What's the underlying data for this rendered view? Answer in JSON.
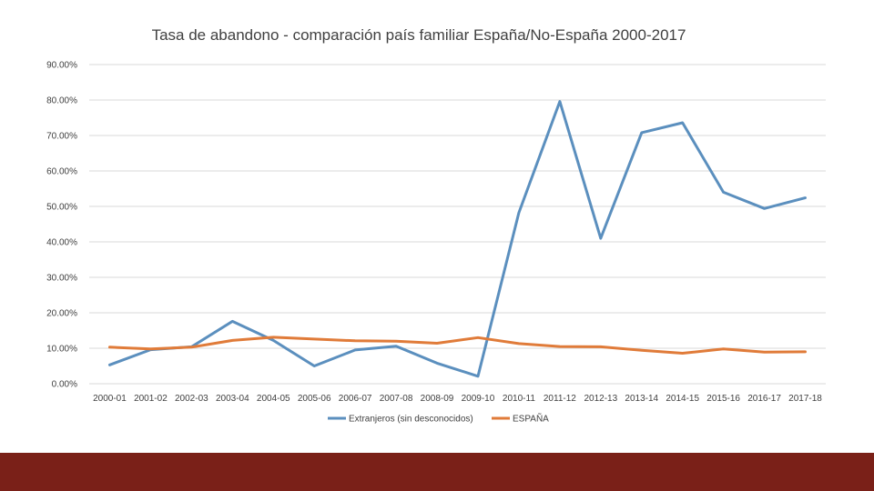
{
  "chart_data": {
    "type": "line",
    "title": "Tasa de abandono - comparación país familiar España/No-España 2000-2017",
    "xlabel": "",
    "ylabel": "",
    "ylim": [
      0,
      90
    ],
    "y_ticks": [
      "0.00%",
      "10.00%",
      "20.00%",
      "30.00%",
      "40.00%",
      "50.00%",
      "60.00%",
      "70.00%",
      "80.00%",
      "90.00%"
    ],
    "grid": true,
    "legend_position": "bottom",
    "categories": [
      "2000-01",
      "2001-02",
      "2002-03",
      "2003-04",
      "2004-05",
      "2005-06",
      "2006-07",
      "2007-08",
      "2008-09",
      "2009-10",
      "2010-11",
      "2011-12",
      "2012-13",
      "2013-14",
      "2014-15",
      "2015-16",
      "2016-17",
      "2017-18"
    ],
    "series": [
      {
        "name": "Extranjeros (sin desconocidos)",
        "color": "#5B8FBE",
        "values": [
          5.3,
          9.6,
          10.4,
          17.6,
          12.2,
          5.0,
          9.5,
          10.6,
          5.8,
          2.1,
          48.2,
          79.6,
          41.0,
          70.8,
          73.6,
          54.0,
          49.4,
          52.4
        ]
      },
      {
        "name": "ESPAÑA",
        "color": "#E07B39",
        "values": [
          10.3,
          9.8,
          10.3,
          12.2,
          13.1,
          12.6,
          12.1,
          12.0,
          11.4,
          13.0,
          11.3,
          10.5,
          10.4,
          9.4,
          8.6,
          9.8,
          8.9,
          9.0
        ]
      }
    ]
  },
  "footer": {
    "color": "#7A2018"
  }
}
